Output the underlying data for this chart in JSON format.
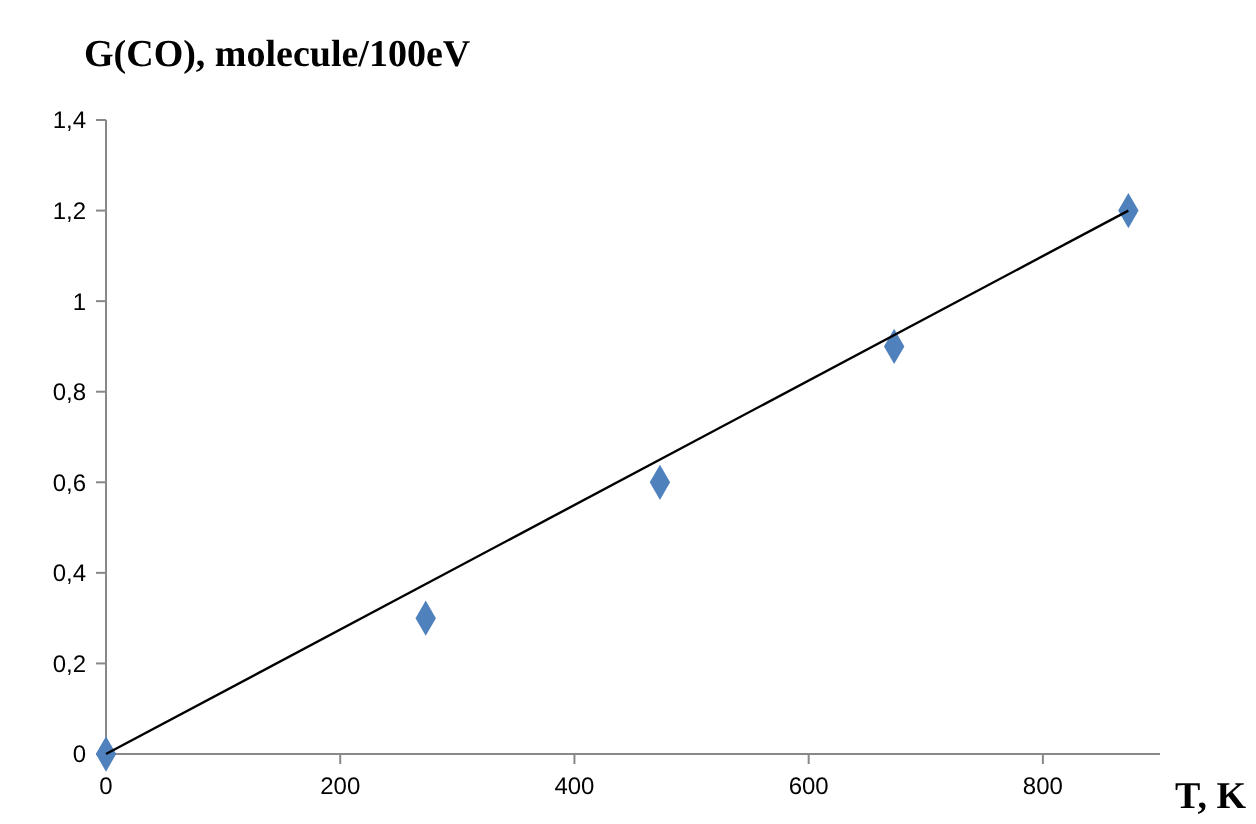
{
  "chart_data": {
    "type": "scatter",
    "title": "G(CO), molecule/100eV",
    "xlabel": "T, K",
    "marker": "diamond",
    "grid": false,
    "xlim": [
      0,
      900
    ],
    "xticks": [
      0,
      200,
      400,
      600,
      800
    ],
    "ylim": [
      0,
      1.4
    ],
    "yticks": [
      0,
      {
        "value": 0.2,
        "label": "0,2"
      },
      {
        "value": 0.4,
        "label": "0,4"
      },
      {
        "value": 0.6,
        "label": "0,6"
      },
      {
        "value": 0.8,
        "label": "0,8"
      },
      1,
      {
        "value": 1.2,
        "label": "1,2"
      },
      {
        "value": 1.4,
        "label": "1,4"
      }
    ],
    "series": [
      {
        "color": "#4f81bd",
        "x": [
          0,
          273,
          473,
          673,
          873
        ],
        "values": [
          0,
          0.3,
          0.6,
          0.9,
          1.2
        ]
      },
      {
        "type": "line",
        "color": "#000000",
        "line_style": "solid",
        "marker": "none",
        "x": [
          0,
          873
        ],
        "values": [
          0,
          1.2
        ]
      }
    ]
  }
}
